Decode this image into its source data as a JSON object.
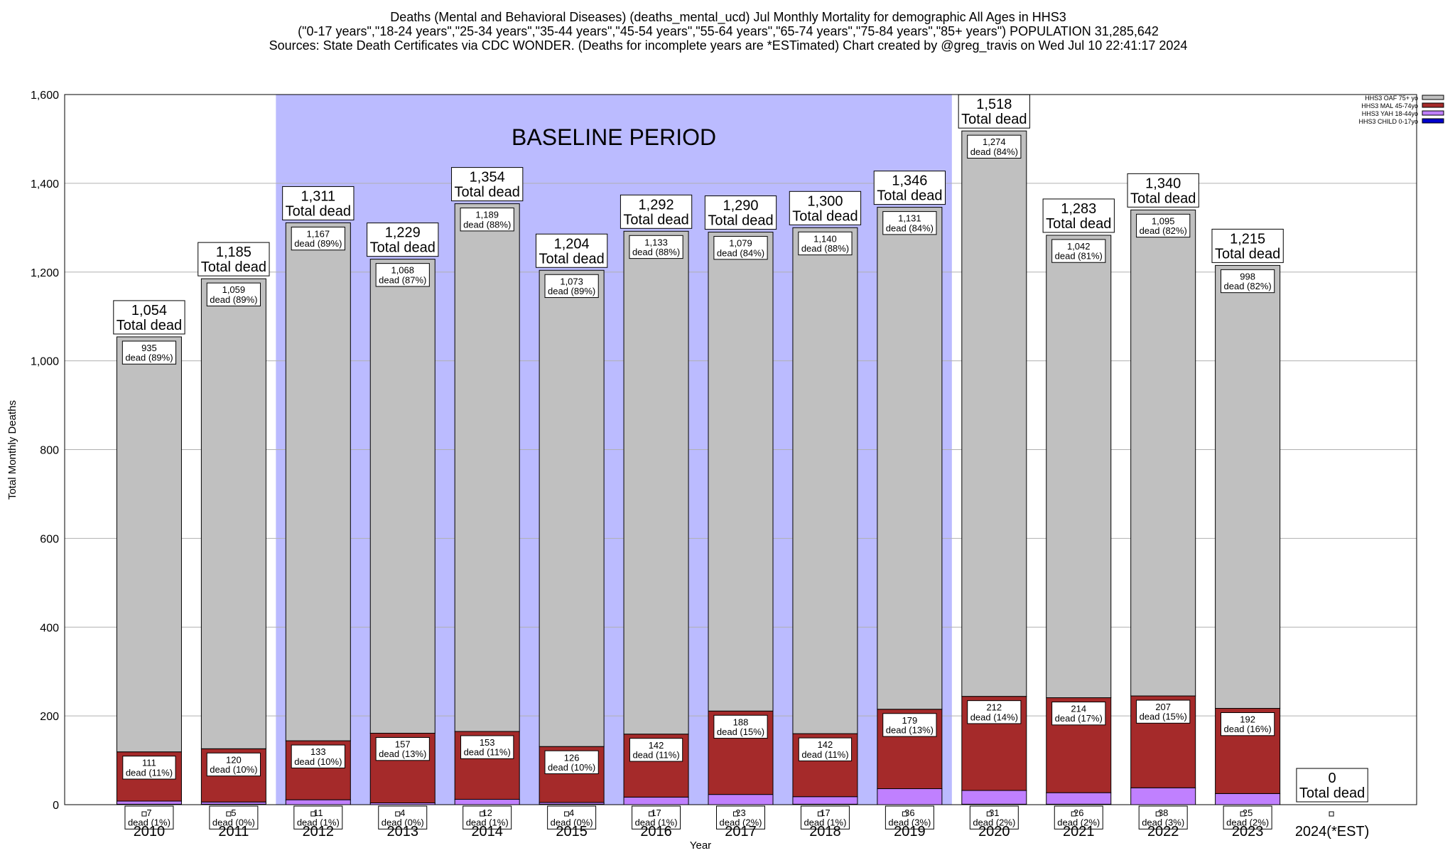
{
  "chart_data": {
    "type": "stacked_bar",
    "title_lines": [
      "Deaths (Mental and Behavioral Diseases) (deaths_mental_ucd) Jul Monthly Mortality for demographic All Ages in HHS3",
      "(\"0-17 years\",\"18-24 years\",\"25-34 years\",\"35-44 years\",\"45-54 years\",\"55-64 years\",\"65-74 years\",\"75-84 years\",\"85+ years\") POPULATION 31,285,642",
      "Sources: State Death Certificates via CDC WONDER. (Deaths for incomplete years are *ESTimated)               Chart created by @greg_travis on Wed Jul 10 22:41:17 2024"
    ],
    "xlabel": "Year",
    "ylabel": "Total Monthly Deaths",
    "categories": [
      "2010",
      "2011",
      "2012",
      "2013",
      "2014",
      "2015",
      "2016",
      "2017",
      "2018",
      "2019",
      "2020",
      "2021",
      "2022",
      "2023",
      "2024(*EST)"
    ],
    "series": [
      {
        "name": "HHS3 CHILD 0-17yo",
        "color": "#0000cc",
        "values": [
          1,
          1,
          0,
          0,
          0,
          1,
          0,
          0,
          1,
          0,
          1,
          1,
          0,
          0,
          null
        ]
      },
      {
        "name": "HHS3 YAH 18-44yo",
        "color": "#c080ff",
        "values": [
          7,
          5,
          11,
          4,
          12,
          4,
          17,
          23,
          17,
          36,
          31,
          26,
          38,
          25,
          null
        ],
        "pct_labels": [
          "dead (1%)",
          "dead (0%)",
          "dead (1%)",
          "dead (0%)",
          "dead (1%)",
          "dead (0%)",
          "dead (1%)",
          "dead (2%)",
          "dead (1%)",
          "dead (3%)",
          "dead (2%)",
          "dead (2%)",
          "dead (3%)",
          "dead (2%)",
          null
        ]
      },
      {
        "name": "HHS3 MAL 45-74yo",
        "color": "#a52a2a",
        "values": [
          111,
          120,
          133,
          157,
          153,
          126,
          142,
          188,
          142,
          179,
          212,
          214,
          207,
          192,
          null
        ],
        "pct_labels": [
          "dead (11%)",
          "dead (10%)",
          "dead (10%)",
          "dead (13%)",
          "dead (11%)",
          "dead (10%)",
          "dead (11%)",
          "dead (15%)",
          "dead (11%)",
          "dead (13%)",
          "dead (14%)",
          "dead (17%)",
          "dead (15%)",
          "dead (16%)",
          null
        ]
      },
      {
        "name": "HHS3 OAF 75+ yo",
        "color": "#c0c0c0",
        "values": [
          935,
          1059,
          1167,
          1068,
          1189,
          1073,
          1133,
          1079,
          1140,
          1131,
          1274,
          1042,
          1095,
          998,
          null
        ],
        "value_labels": [
          "935",
          "1,059",
          "1,167",
          "1,068",
          "1,189",
          "1,073",
          "1,133",
          "1,079",
          "1,140",
          "1,131",
          "1,274",
          "1,042",
          "1,095",
          "998",
          null
        ],
        "pct_labels": [
          "dead (89%)",
          "dead (89%)",
          "dead (89%)",
          "dead (87%)",
          "dead (88%)",
          "dead (89%)",
          "dead (88%)",
          "dead (84%)",
          "dead (88%)",
          "dead (84%)",
          "dead (84%)",
          "dead (81%)",
          "dead (82%)",
          "dead (82%)",
          null
        ]
      }
    ],
    "totals": [
      1054,
      1185,
      1311,
      1229,
      1354,
      1204,
      1292,
      1290,
      1300,
      1346,
      1518,
      1283,
      1340,
      1215,
      0
    ],
    "total_labels": [
      "1,054",
      "1,185",
      "1,311",
      "1,229",
      "1,354",
      "1,204",
      "1,292",
      "1,290",
      "1,300",
      "1,346",
      "1,518",
      "1,283",
      "1,340",
      "1,215",
      "0"
    ],
    "total_text": "Total dead",
    "baseline": {
      "label": "BASELINE PERIOD",
      "from": "2012",
      "to": "2019",
      "color": "#bbbbff"
    },
    "ylim": [
      0,
      1600
    ],
    "yticks": [
      0,
      200,
      400,
      600,
      800,
      {
        "value": 1000,
        "label": "1,000"
      },
      {
        "value": 1200,
        "label": "1,200"
      },
      {
        "value": 1400,
        "label": "1,400"
      },
      {
        "value": 1600,
        "label": "1,600"
      }
    ],
    "grid": true,
    "legend": "upper right"
  }
}
